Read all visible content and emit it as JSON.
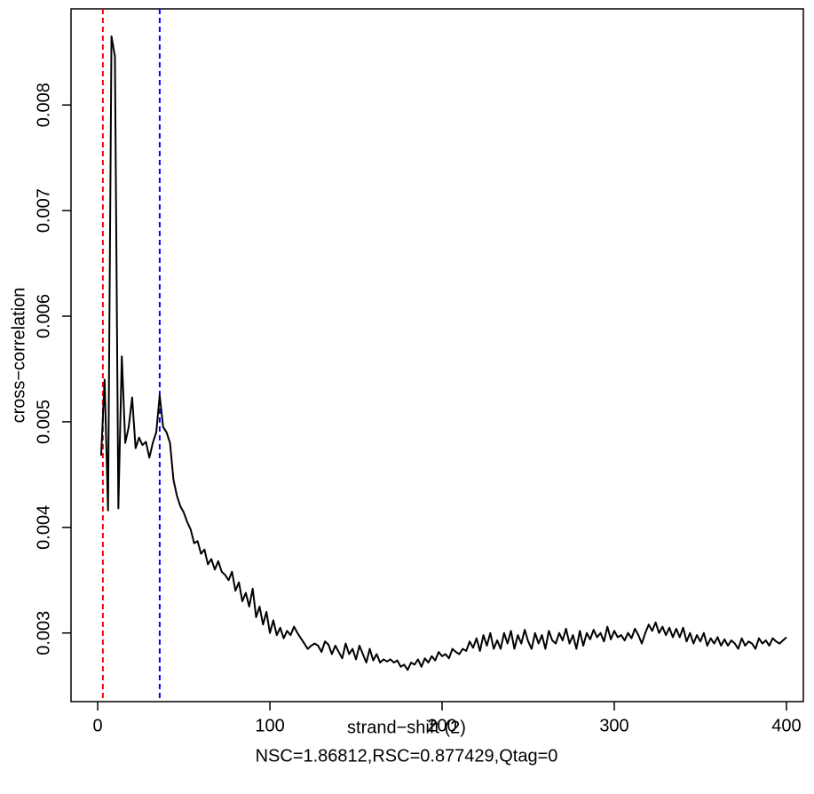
{
  "chart_data": {
    "type": "line",
    "x_label": "strand−shift (2)",
    "y_label": "cross−correlation",
    "subtitle": "NSC=1.86812,RSC=0.877429,Qtag=0",
    "xlim": [
      -15.5,
      409.8
    ],
    "ylim": [
      0.00235,
      0.00891
    ],
    "xticks": [
      0,
      100,
      200,
      300,
      400
    ],
    "yticks": [
      0.003,
      0.004,
      0.005,
      0.006,
      0.007,
      0.008
    ],
    "vlines": [
      {
        "value": 3,
        "color": "#ff0000"
      },
      {
        "value": 36,
        "color": "#0000ff"
      }
    ],
    "series": [
      {
        "color": "#000000",
        "x": [
          2,
          4,
          6,
          8,
          10,
          12,
          14,
          16,
          18,
          20,
          22,
          24,
          26,
          28,
          30,
          32,
          34,
          36,
          38,
          40,
          42,
          44,
          46,
          48,
          50,
          52,
          54,
          56,
          58,
          60,
          62,
          64,
          66,
          68,
          70,
          72,
          74,
          76,
          78,
          80,
          82,
          84,
          86,
          88,
          90,
          92,
          94,
          96,
          98,
          100,
          102,
          104,
          106,
          108,
          110,
          112,
          114,
          116,
          118,
          120,
          122,
          124,
          126,
          128,
          130,
          132,
          134,
          136,
          138,
          140,
          142,
          144,
          146,
          148,
          150,
          152,
          154,
          156,
          158,
          160,
          162,
          164,
          166,
          168,
          170,
          172,
          174,
          176,
          178,
          180,
          182,
          184,
          186,
          188,
          190,
          192,
          194,
          196,
          198,
          200,
          202,
          204,
          206,
          208,
          210,
          212,
          214,
          216,
          218,
          220,
          222,
          224,
          226,
          228,
          230,
          232,
          234,
          236,
          238,
          240,
          242,
          244,
          246,
          248,
          250,
          252,
          254,
          256,
          258,
          260,
          262,
          264,
          266,
          268,
          270,
          272,
          274,
          276,
          278,
          280,
          282,
          284,
          286,
          288,
          290,
          292,
          294,
          296,
          298,
          300,
          302,
          304,
          306,
          308,
          310,
          312,
          314,
          316,
          318,
          320,
          322,
          324,
          326,
          328,
          330,
          332,
          334,
          336,
          338,
          340,
          342,
          344,
          346,
          348,
          350,
          352,
          354,
          356,
          358,
          360,
          362,
          364,
          366,
          368,
          370,
          372,
          374,
          376,
          378,
          380,
          382,
          384,
          386,
          388,
          390,
          392,
          394,
          396,
          398,
          400
        ],
        "values": [
          0.00468,
          0.0054,
          0.00416,
          0.00865,
          0.00846,
          0.00418,
          0.00562,
          0.0048,
          0.00495,
          0.00523,
          0.00475,
          0.00485,
          0.00478,
          0.00481,
          0.00466,
          0.0048,
          0.0049,
          0.00525,
          0.00495,
          0.0049,
          0.0048,
          0.00445,
          0.0043,
          0.0042,
          0.00414,
          0.00405,
          0.00398,
          0.00385,
          0.00387,
          0.00375,
          0.00379,
          0.00365,
          0.0037,
          0.0036,
          0.00368,
          0.00358,
          0.00355,
          0.0035,
          0.00358,
          0.0034,
          0.00348,
          0.0033,
          0.00338,
          0.00325,
          0.00342,
          0.00315,
          0.00325,
          0.00308,
          0.0032,
          0.003,
          0.00312,
          0.00298,
          0.00305,
          0.00295,
          0.00302,
          0.00298,
          0.00306,
          0.003,
          0.00295,
          0.0029,
          0.00285,
          0.00288,
          0.0029,
          0.00288,
          0.00282,
          0.00292,
          0.00289,
          0.0028,
          0.00288,
          0.00282,
          0.00276,
          0.0029,
          0.0028,
          0.00285,
          0.00275,
          0.00288,
          0.0028,
          0.00272,
          0.00285,
          0.00274,
          0.0028,
          0.00272,
          0.00275,
          0.00273,
          0.00275,
          0.00272,
          0.00274,
          0.00268,
          0.0027,
          0.00265,
          0.00272,
          0.0027,
          0.00275,
          0.00268,
          0.00276,
          0.00272,
          0.00278,
          0.00274,
          0.00282,
          0.00278,
          0.0028,
          0.00276,
          0.00285,
          0.00282,
          0.0028,
          0.00285,
          0.00283,
          0.00292,
          0.00286,
          0.00295,
          0.00283,
          0.00298,
          0.00288,
          0.003,
          0.00285,
          0.00293,
          0.00285,
          0.003,
          0.0029,
          0.00302,
          0.00285,
          0.00298,
          0.0029,
          0.00303,
          0.00292,
          0.00285,
          0.003,
          0.0029,
          0.00298,
          0.00285,
          0.00302,
          0.00293,
          0.0029,
          0.003,
          0.00293,
          0.00304,
          0.0029,
          0.00298,
          0.00285,
          0.00302,
          0.00288,
          0.003,
          0.00294,
          0.00303,
          0.00296,
          0.003,
          0.00292,
          0.00306,
          0.00294,
          0.00302,
          0.00296,
          0.00298,
          0.00293,
          0.003,
          0.00295,
          0.00304,
          0.00298,
          0.0029,
          0.003,
          0.00308,
          0.00302,
          0.0031,
          0.003,
          0.00306,
          0.00298,
          0.00305,
          0.00296,
          0.00304,
          0.00296,
          0.00305,
          0.00292,
          0.003,
          0.0029,
          0.00298,
          0.00292,
          0.003,
          0.00288,
          0.00295,
          0.0029,
          0.00296,
          0.00288,
          0.00294,
          0.00288,
          0.00293,
          0.0029,
          0.00285,
          0.00295,
          0.00288,
          0.00292,
          0.0029,
          0.00285,
          0.00295,
          0.0029,
          0.00293,
          0.00288,
          0.00295,
          0.00292,
          0.0029,
          0.00293,
          0.00296
        ]
      }
    ]
  }
}
